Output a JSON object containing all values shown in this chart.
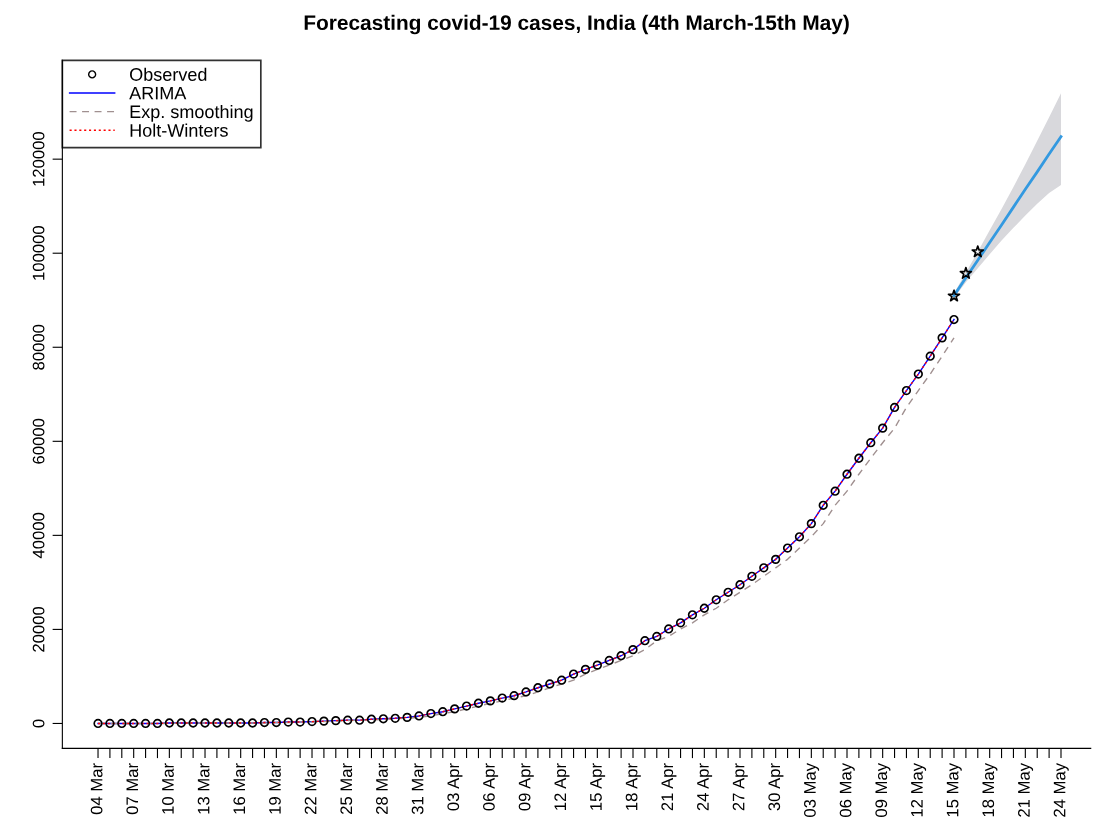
{
  "chart_data": {
    "type": "line",
    "title": "Forecasting covid-19 cases, India (4th March-15th May)",
    "categories": [
      "04 Mar",
      null,
      null,
      "07 Mar",
      null,
      null,
      "10 Mar",
      null,
      null,
      "13 Mar",
      null,
      null,
      "16 Mar",
      null,
      null,
      "19 Mar",
      null,
      null,
      "22 Mar",
      null,
      null,
      "25 Mar",
      null,
      null,
      "28 Mar",
      null,
      null,
      "31 Mar",
      null,
      null,
      "03 Apr",
      null,
      null,
      "06 Apr",
      null,
      null,
      "09 Apr",
      null,
      null,
      "12 Apr",
      null,
      null,
      "15 Apr",
      null,
      null,
      "18 Apr",
      null,
      null,
      "21 Apr",
      null,
      null,
      "24 Apr",
      null,
      null,
      "27 Apr",
      null,
      null,
      "30 Apr",
      null,
      null,
      "03 May",
      null,
      null,
      "06 May",
      null,
      null,
      "09 May",
      null,
      null,
      "12 May",
      null,
      null,
      "15 May",
      null,
      null,
      "18 May",
      null,
      null,
      "21 May",
      null,
      null,
      "24 May"
    ],
    "series": [
      {
        "name": "Observed",
        "type": "scatter",
        "marker": "circle",
        "color": "#000000",
        "values": [
          0,
          0,
          0,
          0,
          0,
          0,
          100,
          100,
          100,
          100,
          100,
          100,
          100,
          100,
          200,
          200,
          300,
          300,
          400,
          500,
          600,
          700,
          700,
          900,
          1000,
          1100,
          1300,
          1600,
          2100,
          2500,
          3100,
          3700,
          4300,
          4800,
          5400,
          5900,
          6700,
          7600,
          8400,
          9200,
          10500,
          11500,
          12400,
          13400,
          14400,
          15700,
          17600,
          18500,
          20100,
          21400,
          23100,
          24500,
          26300,
          27900,
          29500,
          31300,
          33100,
          34900,
          37300,
          39700,
          42500,
          46400,
          49400,
          53000,
          56400,
          59700,
          62800,
          67200,
          70800,
          74300,
          78100,
          82000,
          85900,
          null,
          null,
          null,
          null,
          null,
          null,
          null,
          null,
          null
        ]
      },
      {
        "name": "ARIMA",
        "line_style": "solid",
        "color": "#0000ff",
        "values": [
          0,
          0,
          0,
          0,
          0,
          0,
          100,
          100,
          100,
          100,
          100,
          100,
          100,
          100,
          200,
          200,
          300,
          300,
          400,
          500,
          600,
          700,
          700,
          900,
          1000,
          1100,
          1300,
          1600,
          2100,
          2500,
          3100,
          3700,
          4300,
          4800,
          5400,
          5900,
          6700,
          7600,
          8400,
          9200,
          10500,
          11500,
          12400,
          13400,
          14400,
          15700,
          17600,
          18500,
          20100,
          21400,
          23100,
          24500,
          26300,
          27900,
          29500,
          31300,
          33100,
          34900,
          37300,
          39700,
          42500,
          46400,
          49400,
          53000,
          56400,
          59700,
          62800,
          67200,
          70800,
          74300,
          78100,
          82000,
          85900,
          null,
          null,
          null,
          null,
          null,
          null,
          null,
          null,
          null
        ]
      },
      {
        "name": "Exp. smoothing",
        "line_style": "dashed",
        "color": "#a09090",
        "values": [
          0,
          0,
          0,
          0,
          0,
          0,
          0,
          100,
          100,
          100,
          100,
          100,
          100,
          100,
          100,
          200,
          200,
          300,
          300,
          400,
          500,
          600,
          700,
          700,
          900,
          1000,
          1100,
          1300,
          1600,
          2100,
          2500,
          3100,
          3700,
          4300,
          4800,
          5400,
          5900,
          6700,
          7600,
          8400,
          9200,
          10500,
          11500,
          12400,
          13400,
          14400,
          15700,
          17600,
          18500,
          20100,
          21400,
          23100,
          24500,
          26300,
          27900,
          29500,
          31300,
          33100,
          34900,
          37300,
          39700,
          42500,
          46400,
          49400,
          53000,
          56400,
          59700,
          62800,
          67200,
          70800,
          74300,
          78100,
          82000,
          null,
          null,
          null,
          null,
          null,
          null,
          null,
          null,
          null
        ]
      },
      {
        "name": "Holt-Winters",
        "line_style": "dotted",
        "color": "#ff0000",
        "values": [
          0,
          0,
          0,
          0,
          0,
          0,
          100,
          100,
          100,
          100,
          100,
          100,
          100,
          100,
          200,
          200,
          300,
          300,
          400,
          500,
          600,
          700,
          700,
          900,
          1000,
          1100,
          1300,
          1600,
          2100,
          2500,
          3100,
          3700,
          4300,
          4800,
          5400,
          5900,
          6700,
          7600,
          8400,
          9200,
          10500,
          11500,
          12400,
          13400,
          14400,
          15700,
          17600,
          18500,
          20100,
          21400,
          23100,
          24500,
          26300,
          27900,
          29500,
          31300,
          33100,
          34900,
          37300,
          39700,
          42500,
          46400,
          49400,
          53000,
          56400,
          59700,
          62800,
          67200,
          70800,
          74300,
          78100,
          82000,
          85900,
          null,
          null,
          null,
          null,
          null,
          null,
          null,
          null,
          null
        ]
      },
      {
        "line_style": "solid",
        "color": "#3399e0",
        "values": [
          null,
          null,
          null,
          null,
          null,
          null,
          null,
          null,
          null,
          null,
          null,
          null,
          null,
          null,
          null,
          null,
          null,
          null,
          null,
          null,
          null,
          null,
          null,
          null,
          null,
          null,
          null,
          null,
          null,
          null,
          null,
          null,
          null,
          null,
          null,
          null,
          null,
          null,
          null,
          null,
          null,
          null,
          null,
          null,
          null,
          null,
          null,
          null,
          null,
          null,
          null,
          null,
          null,
          null,
          null,
          null,
          null,
          null,
          null,
          null,
          null,
          null,
          null,
          null,
          null,
          null,
          null,
          null,
          null,
          null,
          null,
          null,
          91000,
          94800,
          98500,
          102300,
          106000,
          109800,
          113600,
          117300,
          121100,
          124800
        ],
        "lower": [
          null,
          null,
          null,
          null,
          null,
          null,
          null,
          null,
          null,
          null,
          null,
          null,
          null,
          null,
          null,
          null,
          null,
          null,
          null,
          null,
          null,
          null,
          null,
          null,
          null,
          null,
          null,
          null,
          null,
          null,
          null,
          null,
          null,
          null,
          null,
          null,
          null,
          null,
          null,
          null,
          null,
          null,
          null,
          null,
          null,
          null,
          null,
          null,
          null,
          null,
          null,
          null,
          null,
          null,
          null,
          null,
          null,
          null,
          null,
          null,
          null,
          null,
          null,
          null,
          null,
          null,
          null,
          null,
          null,
          null,
          null,
          null,
          90500,
          93800,
          96800,
          99800,
          102700,
          105400,
          108000,
          110500,
          112800,
          114500
        ],
        "upper": [
          null,
          null,
          null,
          null,
          null,
          null,
          null,
          null,
          null,
          null,
          null,
          null,
          null,
          null,
          null,
          null,
          null,
          null,
          null,
          null,
          null,
          null,
          null,
          null,
          null,
          null,
          null,
          null,
          null,
          null,
          null,
          null,
          null,
          null,
          null,
          null,
          null,
          null,
          null,
          null,
          null,
          null,
          null,
          null,
          null,
          null,
          null,
          null,
          null,
          null,
          null,
          null,
          null,
          null,
          null,
          null,
          null,
          null,
          null,
          null,
          null,
          null,
          null,
          null,
          null,
          null,
          null,
          null,
          null,
          null,
          null,
          null,
          91500,
          95900,
          100300,
          104900,
          109400,
          114100,
          118900,
          123900,
          128900,
          134000
        ]
      },
      {
        "type": "scatter",
        "marker": "star",
        "color": "#000000",
        "values": [
          null,
          null,
          null,
          null,
          null,
          null,
          null,
          null,
          null,
          null,
          null,
          null,
          null,
          null,
          null,
          null,
          null,
          null,
          null,
          null,
          null,
          null,
          null,
          null,
          null,
          null,
          null,
          null,
          null,
          null,
          null,
          null,
          null,
          null,
          null,
          null,
          null,
          null,
          null,
          null,
          null,
          null,
          null,
          null,
          null,
          null,
          null,
          null,
          null,
          null,
          null,
          null,
          null,
          null,
          null,
          null,
          null,
          null,
          null,
          null,
          null,
          null,
          null,
          null,
          null,
          null,
          null,
          null,
          null,
          null,
          null,
          null,
          90900,
          95700,
          100300,
          null,
          null,
          null,
          null,
          null,
          null,
          null
        ]
      }
    ],
    "ylim": [
      -5300,
      141000
    ],
    "yticks": [
      0,
      20000,
      40000,
      60000,
      80000,
      100000,
      120000
    ],
    "grid": false,
    "legend": "top left"
  }
}
